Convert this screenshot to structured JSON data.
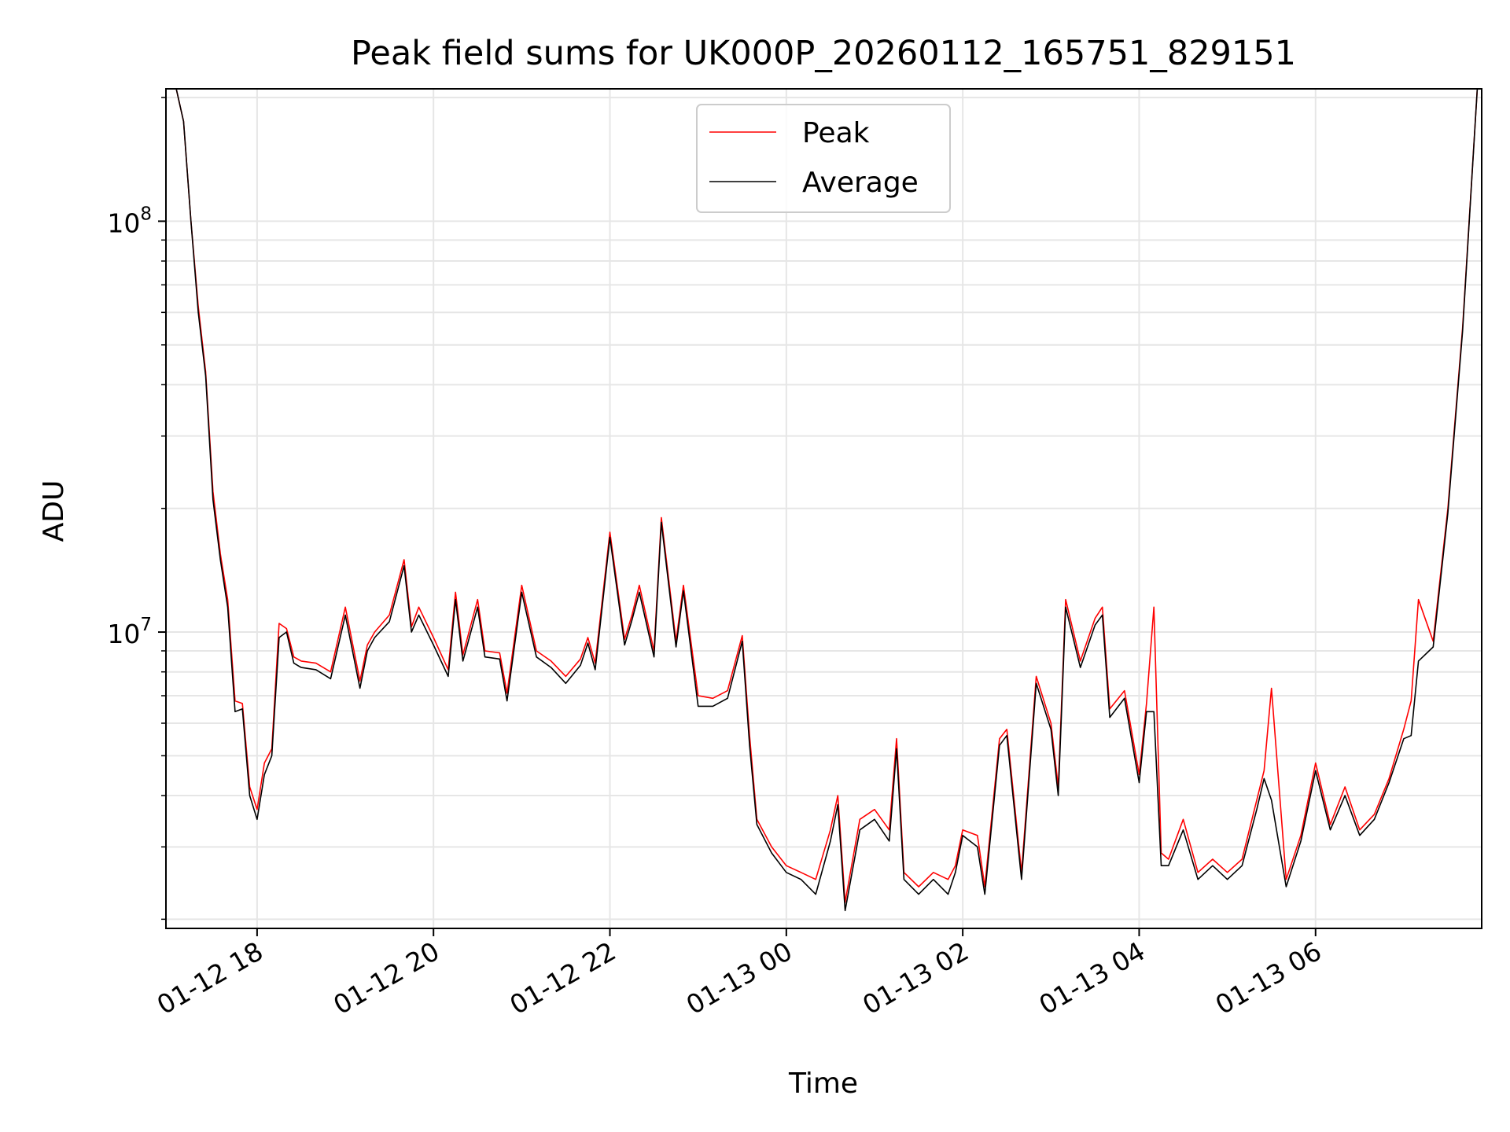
{
  "chart_data": {
    "type": "line",
    "title": "Peak field sums for UK000P_20260112_165751_829151",
    "xlabel": "Time",
    "ylabel": "ADU",
    "yscale": "log",
    "xlim": [
      "2026-01-12 16:58",
      "2026-01-13 07:53"
    ],
    "ylim": [
      1900000,
      210000000
    ],
    "grid": true,
    "legend": "upper-center",
    "x_ticks": [
      {
        "t": "2026-01-12 18:00",
        "label": "01-12 18"
      },
      {
        "t": "2026-01-12 20:00",
        "label": "01-12 20"
      },
      {
        "t": "2026-01-12 22:00",
        "label": "01-12 22"
      },
      {
        "t": "2026-01-13 00:00",
        "label": "01-13 00"
      },
      {
        "t": "2026-01-13 02:00",
        "label": "01-13 02"
      },
      {
        "t": "2026-01-13 04:00",
        "label": "01-13 04"
      },
      {
        "t": "2026-01-13 06:00",
        "label": "01-13 06"
      }
    ],
    "y_major_ticks": [
      {
        "value": 10000000,
        "base": "10",
        "exp": "7"
      },
      {
        "value": 100000000,
        "base": "10",
        "exp": "8"
      }
    ],
    "series": [
      {
        "name": "Peak",
        "color": "#ff0000",
        "x": [
          "2026-01-12 17:05",
          "2026-01-12 17:10",
          "2026-01-12 17:15",
          "2026-01-12 17:20",
          "2026-01-12 17:25",
          "2026-01-12 17:30",
          "2026-01-12 17:35",
          "2026-01-12 17:40",
          "2026-01-12 17:45",
          "2026-01-12 17:50",
          "2026-01-12 17:55",
          "2026-01-12 18:00",
          "2026-01-12 18:05",
          "2026-01-12 18:10",
          "2026-01-12 18:15",
          "2026-01-12 18:20",
          "2026-01-12 18:25",
          "2026-01-12 18:30",
          "2026-01-12 18:40",
          "2026-01-12 18:50",
          "2026-01-12 19:00",
          "2026-01-12 19:10",
          "2026-01-12 19:15",
          "2026-01-12 19:20",
          "2026-01-12 19:30",
          "2026-01-12 19:40",
          "2026-01-12 19:45",
          "2026-01-12 19:50",
          "2026-01-12 20:00",
          "2026-01-12 20:10",
          "2026-01-12 20:15",
          "2026-01-12 20:20",
          "2026-01-12 20:30",
          "2026-01-12 20:35",
          "2026-01-12 20:45",
          "2026-01-12 20:50",
          "2026-01-12 21:00",
          "2026-01-12 21:10",
          "2026-01-12 21:20",
          "2026-01-12 21:30",
          "2026-01-12 21:40",
          "2026-01-12 21:45",
          "2026-01-12 21:50",
          "2026-01-12 22:00",
          "2026-01-12 22:10",
          "2026-01-12 22:15",
          "2026-01-12 22:20",
          "2026-01-12 22:30",
          "2026-01-12 22:35",
          "2026-01-12 22:45",
          "2026-01-12 22:50",
          "2026-01-12 23:00",
          "2026-01-12 23:10",
          "2026-01-12 23:20",
          "2026-01-12 23:30",
          "2026-01-12 23:35",
          "2026-01-12 23:40",
          "2026-01-12 23:50",
          "2026-01-13 00:00",
          "2026-01-13 00:10",
          "2026-01-13 00:20",
          "2026-01-13 00:30",
          "2026-01-13 00:35",
          "2026-01-13 00:40",
          "2026-01-13 00:50",
          "2026-01-13 01:00",
          "2026-01-13 01:10",
          "2026-01-13 01:15",
          "2026-01-13 01:20",
          "2026-01-13 01:30",
          "2026-01-13 01:40",
          "2026-01-13 01:50",
          "2026-01-13 01:55",
          "2026-01-13 02:00",
          "2026-01-13 02:10",
          "2026-01-13 02:15",
          "2026-01-13 02:25",
          "2026-01-13 02:30",
          "2026-01-13 02:40",
          "2026-01-13 02:50",
          "2026-01-13 03:00",
          "2026-01-13 03:05",
          "2026-01-13 03:10",
          "2026-01-13 03:20",
          "2026-01-13 03:30",
          "2026-01-13 03:35",
          "2026-01-13 03:40",
          "2026-01-13 03:50",
          "2026-01-13 04:00",
          "2026-01-13 04:05",
          "2026-01-13 04:10",
          "2026-01-13 04:15",
          "2026-01-13 04:20",
          "2026-01-13 04:30",
          "2026-01-13 04:40",
          "2026-01-13 04:50",
          "2026-01-13 05:00",
          "2026-01-13 05:10",
          "2026-01-13 05:20",
          "2026-01-13 05:25",
          "2026-01-13 05:30",
          "2026-01-13 05:40",
          "2026-01-13 05:50",
          "2026-01-13 06:00",
          "2026-01-13 06:10",
          "2026-01-13 06:20",
          "2026-01-13 06:30",
          "2026-01-13 06:40",
          "2026-01-13 06:50",
          "2026-01-13 07:00",
          "2026-01-13 07:05",
          "2026-01-13 07:10",
          "2026-01-13 07:20",
          "2026-01-13 07:30",
          "2026-01-13 07:40",
          "2026-01-13 07:50"
        ],
        "values": [
          210000000,
          175000000,
          100000000,
          62000000,
          43000000,
          22000000,
          15500000,
          12000000,
          6800000,
          6700000,
          4200000,
          3700000,
          4800000,
          5200000,
          10500000,
          10200000,
          8700000,
          8500000,
          8400000,
          8000000,
          11500000,
          7600000,
          9300000,
          10000000,
          11000000,
          15000000,
          10300000,
          11500000,
          9700000,
          8100000,
          12500000,
          8800000,
          12000000,
          9000000,
          8900000,
          7100000,
          13000000,
          9000000,
          8500000,
          7800000,
          8600000,
          9700000,
          8400000,
          17500000,
          9600000,
          11000000,
          13000000,
          9000000,
          19000000,
          9500000,
          13000000,
          7000000,
          6900000,
          7200000,
          9800000,
          5600000,
          3500000,
          3000000,
          2700000,
          2600000,
          2500000,
          3300000,
          4000000,
          2200000,
          3500000,
          3700000,
          3300000,
          5500000,
          2600000,
          2400000,
          2600000,
          2500000,
          2700000,
          3300000,
          3200000,
          2400000,
          5500000,
          5800000,
          2600000,
          7800000,
          6000000,
          4200000,
          12000000,
          8500000,
          10800000,
          11500000,
          6500000,
          7200000,
          4500000,
          6700000,
          11500000,
          2900000,
          2800000,
          3500000,
          2600000,
          2800000,
          2600000,
          2800000,
          3900000,
          4600000,
          7300000,
          2500000,
          3200000,
          4800000,
          3400000,
          4200000,
          3300000,
          3600000,
          4400000,
          5800000,
          6800000,
          12000000,
          9500000,
          20000000,
          55000000,
          210000000
        ]
      },
      {
        "name": "Average",
        "color": "#000000",
        "x": [
          "2026-01-12 17:05",
          "2026-01-12 17:10",
          "2026-01-12 17:15",
          "2026-01-12 17:20",
          "2026-01-12 17:25",
          "2026-01-12 17:30",
          "2026-01-12 17:35",
          "2026-01-12 17:40",
          "2026-01-12 17:45",
          "2026-01-12 17:50",
          "2026-01-12 17:55",
          "2026-01-12 18:00",
          "2026-01-12 18:05",
          "2026-01-12 18:10",
          "2026-01-12 18:15",
          "2026-01-12 18:20",
          "2026-01-12 18:25",
          "2026-01-12 18:30",
          "2026-01-12 18:40",
          "2026-01-12 18:50",
          "2026-01-12 19:00",
          "2026-01-12 19:10",
          "2026-01-12 19:15",
          "2026-01-12 19:20",
          "2026-01-12 19:30",
          "2026-01-12 19:40",
          "2026-01-12 19:45",
          "2026-01-12 19:50",
          "2026-01-12 20:00",
          "2026-01-12 20:10",
          "2026-01-12 20:15",
          "2026-01-12 20:20",
          "2026-01-12 20:30",
          "2026-01-12 20:35",
          "2026-01-12 20:45",
          "2026-01-12 20:50",
          "2026-01-12 21:00",
          "2026-01-12 21:10",
          "2026-01-12 21:20",
          "2026-01-12 21:30",
          "2026-01-12 21:40",
          "2026-01-12 21:45",
          "2026-01-12 21:50",
          "2026-01-12 22:00",
          "2026-01-12 22:10",
          "2026-01-12 22:15",
          "2026-01-12 22:20",
          "2026-01-12 22:30",
          "2026-01-12 22:35",
          "2026-01-12 22:45",
          "2026-01-12 22:50",
          "2026-01-12 23:00",
          "2026-01-12 23:10",
          "2026-01-12 23:20",
          "2026-01-12 23:30",
          "2026-01-12 23:35",
          "2026-01-12 23:40",
          "2026-01-12 23:50",
          "2026-01-13 00:00",
          "2026-01-13 00:10",
          "2026-01-13 00:20",
          "2026-01-13 00:30",
          "2026-01-13 00:35",
          "2026-01-13 00:40",
          "2026-01-13 00:50",
          "2026-01-13 01:00",
          "2026-01-13 01:10",
          "2026-01-13 01:15",
          "2026-01-13 01:20",
          "2026-01-13 01:30",
          "2026-01-13 01:40",
          "2026-01-13 01:50",
          "2026-01-13 01:55",
          "2026-01-13 02:00",
          "2026-01-13 02:10",
          "2026-01-13 02:15",
          "2026-01-13 02:25",
          "2026-01-13 02:30",
          "2026-01-13 02:40",
          "2026-01-13 02:50",
          "2026-01-13 03:00",
          "2026-01-13 03:05",
          "2026-01-13 03:10",
          "2026-01-13 03:20",
          "2026-01-13 03:30",
          "2026-01-13 03:35",
          "2026-01-13 03:40",
          "2026-01-13 03:50",
          "2026-01-13 04:00",
          "2026-01-13 04:05",
          "2026-01-13 04:10",
          "2026-01-13 04:15",
          "2026-01-13 04:20",
          "2026-01-13 04:30",
          "2026-01-13 04:40",
          "2026-01-13 04:50",
          "2026-01-13 05:00",
          "2026-01-13 05:10",
          "2026-01-13 05:20",
          "2026-01-13 05:25",
          "2026-01-13 05:30",
          "2026-01-13 05:40",
          "2026-01-13 05:50",
          "2026-01-13 06:00",
          "2026-01-13 06:10",
          "2026-01-13 06:20",
          "2026-01-13 06:30",
          "2026-01-13 06:40",
          "2026-01-13 06:50",
          "2026-01-13 07:00",
          "2026-01-13 07:05",
          "2026-01-13 07:10",
          "2026-01-13 07:20",
          "2026-01-13 07:30",
          "2026-01-13 07:40",
          "2026-01-13 07:50"
        ],
        "values": [
          210000000,
          175000000,
          100000000,
          60000000,
          42000000,
          21000000,
          15000000,
          11500000,
          6400000,
          6500000,
          4000000,
          3500000,
          4500000,
          5000000,
          9700000,
          10000000,
          8400000,
          8200000,
          8100000,
          7700000,
          11000000,
          7300000,
          9000000,
          9700000,
          10600000,
          14500000,
          10000000,
          11000000,
          9300000,
          7800000,
          12000000,
          8500000,
          11500000,
          8700000,
          8600000,
          6800000,
          12500000,
          8700000,
          8200000,
          7500000,
          8300000,
          9400000,
          8100000,
          17000000,
          9300000,
          10700000,
          12500000,
          8700000,
          18500000,
          9200000,
          12600000,
          6600000,
          6600000,
          6900000,
          9500000,
          5300000,
          3400000,
          2900000,
          2600000,
          2500000,
          2300000,
          3100000,
          3800000,
          2100000,
          3300000,
          3500000,
          3100000,
          5200000,
          2500000,
          2300000,
          2500000,
          2300000,
          2600000,
          3200000,
          3000000,
          2300000,
          5300000,
          5600000,
          2500000,
          7500000,
          5800000,
          4000000,
          11500000,
          8200000,
          10400000,
          11000000,
          6200000,
          6900000,
          4300000,
          6400000,
          6400000,
          2700000,
          2700000,
          3300000,
          2500000,
          2700000,
          2500000,
          2700000,
          3700000,
          4400000,
          3900000,
          2400000,
          3100000,
          4600000,
          3300000,
          4000000,
          3200000,
          3500000,
          4300000,
          5500000,
          5600000,
          8500000,
          9200000,
          19500000,
          54000000,
          210000000
        ]
      }
    ]
  }
}
